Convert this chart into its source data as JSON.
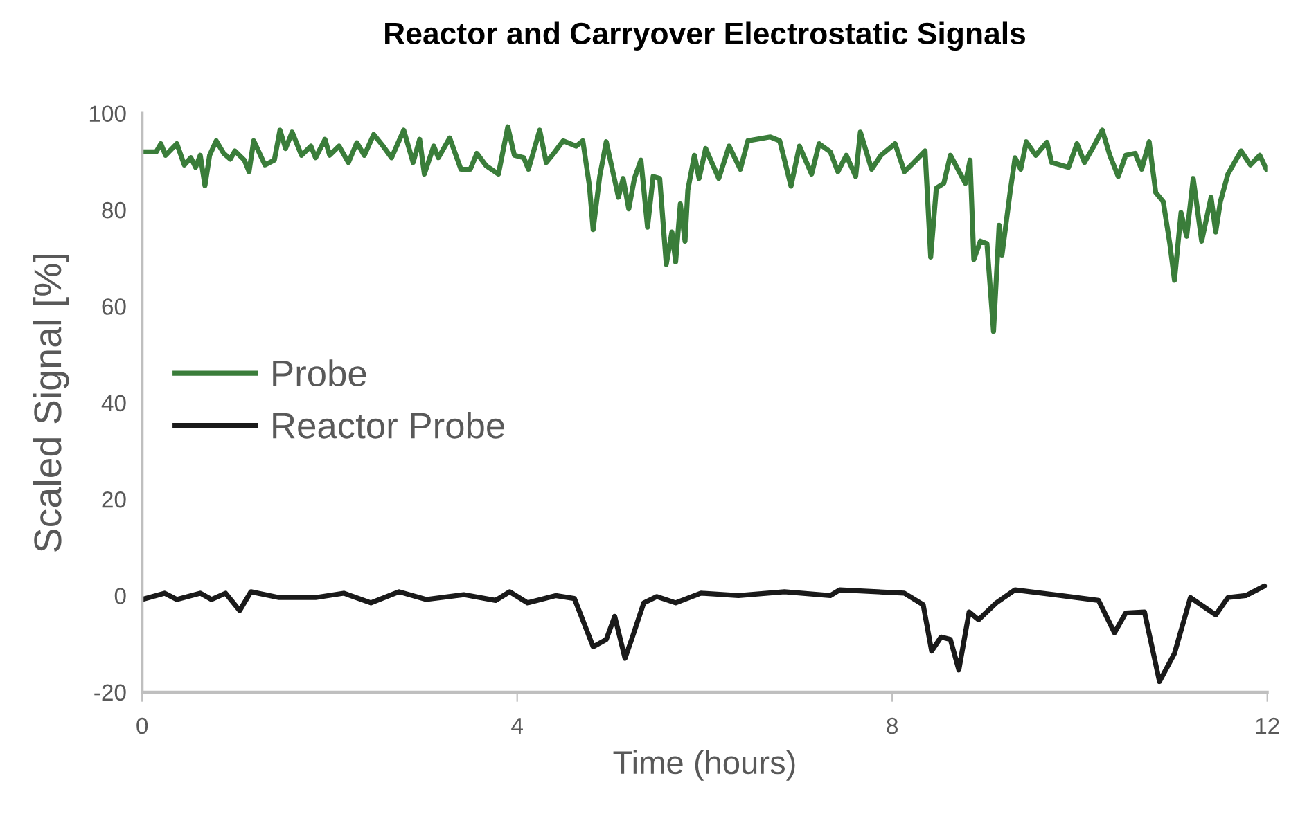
{
  "chart_data": {
    "type": "line",
    "title": "Reactor and Carryover Electrostatic Signals",
    "xlabel": "Time (hours)",
    "ylabel": "Scaled Signal [%]",
    "xlim": [
      0,
      12
    ],
    "xticks": [
      0,
      4,
      8,
      12
    ],
    "ylim": [
      -20,
      100
    ],
    "yticks": [
      -20,
      0,
      20,
      40,
      60,
      80,
      100
    ],
    "grid": false,
    "legend": "left",
    "marker": "none",
    "line_style": "solid",
    "series": [
      {
        "name": "Probe",
        "color": "#3a7d3a",
        "x": [
          0,
          0.15,
          0.2,
          0.25,
          0.37,
          0.45,
          0.52,
          0.57,
          0.62,
          0.67,
          0.72,
          0.79,
          0.87,
          0.94,
          0.99,
          1.09,
          1.14,
          1.19,
          1.31,
          1.41,
          1.47,
          1.53,
          1.6,
          1.7,
          1.8,
          1.85,
          1.95,
          2.0,
          2.1,
          2.2,
          2.29,
          2.37,
          2.47,
          2.57,
          2.66,
          2.79,
          2.89,
          2.96,
          3.01,
          3.11,
          3.16,
          3.28,
          3.4,
          3.5,
          3.57,
          3.67,
          3.8,
          3.9,
          3.97,
          4.07,
          4.12,
          4.24,
          4.31,
          4.39,
          4.49,
          4.63,
          4.7,
          4.77,
          4.81,
          4.88,
          4.95,
          5.08,
          5.13,
          5.19,
          5.25,
          5.32,
          5.39,
          5.45,
          5.52,
          5.59,
          5.65,
          5.69,
          5.74,
          5.79,
          5.82,
          5.89,
          5.94,
          6.01,
          6.15,
          6.26,
          6.38,
          6.46,
          6.7,
          6.8,
          6.92,
          7.01,
          7.14,
          7.22,
          7.34,
          7.42,
          7.51,
          7.61,
          7.66,
          7.78,
          7.88,
          8.03,
          8.13,
          8.23,
          8.35,
          8.41,
          8.47,
          8.55,
          8.62,
          8.78,
          8.83,
          8.87,
          8.94,
          9.01,
          9.08,
          9.14,
          9.17,
          9.26,
          9.31,
          9.37,
          9.43,
          9.53,
          9.65,
          9.7,
          9.88,
          9.97,
          10.05,
          10.15,
          10.24,
          10.32,
          10.41,
          10.49,
          10.59,
          10.66,
          10.74,
          10.81,
          10.89,
          10.96,
          11.01,
          11.08,
          11.14,
          11.21,
          11.3,
          11.4,
          11.45,
          11.5,
          11.58,
          11.72,
          11.82,
          11.92,
          11.99
        ],
        "values": [
          92,
          92,
          93.7,
          91.3,
          93.7,
          89.3,
          90.8,
          88.8,
          91.3,
          85,
          91.3,
          94.3,
          91.7,
          90.5,
          92.2,
          90.3,
          87.9,
          94.3,
          89.3,
          90.3,
          96.5,
          92.7,
          96.1,
          91.3,
          93.2,
          90.8,
          94.6,
          91.3,
          93.2,
          89.8,
          93.9,
          91.3,
          95.6,
          93.2,
          90.8,
          96.5,
          89.8,
          94.6,
          87.4,
          93.2,
          90.8,
          94.9,
          88.4,
          88.4,
          91.7,
          89.1,
          87.4,
          97.2,
          91.3,
          90.8,
          88.4,
          96.5,
          89.8,
          91.7,
          94.3,
          93.2,
          94.3,
          85,
          75.9,
          86.9,
          94.1,
          82.6,
          86.5,
          80.2,
          86.5,
          90.3,
          76.4,
          86.9,
          86.5,
          68.7,
          75.4,
          69.2,
          81.2,
          73.5,
          84.1,
          91.3,
          86.5,
          92.7,
          86.5,
          93.2,
          88.4,
          94.3,
          95.1,
          94.3,
          84.9,
          93.2,
          87.4,
          93.7,
          92,
          87.9,
          91.3,
          86.9,
          96.1,
          88.4,
          91.3,
          93.7,
          87.9,
          89.8,
          92.2,
          70.2,
          84.5,
          85.5,
          91.3,
          85.5,
          90.3,
          69.7,
          73.5,
          73,
          54.8,
          76.8,
          70.6,
          84.1,
          90.8,
          88.4,
          94.1,
          91.3,
          94,
          89.8,
          88.8,
          93.7,
          89.8,
          93.2,
          96.5,
          91.3,
          86.9,
          91.3,
          91.7,
          88.4,
          94.1,
          83.6,
          81.7,
          73,
          65.4,
          79.4,
          74.5,
          86.5,
          73.5,
          82.6,
          75.4,
          81.7,
          87.4,
          92.2,
          89.3,
          91.3,
          88.4
        ]
      },
      {
        "name": "Reactor Probe",
        "color": "#1a1a1a",
        "x": [
          0,
          0.24,
          0.37,
          0.62,
          0.74,
          0.89,
          1.04,
          1.16,
          1.46,
          1.85,
          2.15,
          2.44,
          2.74,
          3.03,
          3.43,
          3.77,
          3.92,
          4.11,
          4.41,
          4.61,
          4.81,
          4.95,
          5.04,
          5.15,
          5.22,
          5.35,
          5.49,
          5.69,
          5.96,
          6.36,
          6.85,
          7.34,
          7.44,
          8.13,
          8.33,
          8.42,
          8.52,
          8.62,
          8.71,
          8.82,
          8.92,
          9.11,
          9.31,
          9.8,
          10.2,
          10.37,
          10.49,
          10.69,
          10.85,
          11.01,
          11.18,
          11.45,
          11.58,
          11.77,
          11.97
        ],
        "values": [
          -0.8,
          0.5,
          -0.8,
          0.5,
          -0.8,
          0.5,
          -3.1,
          0.8,
          -0.4,
          -0.4,
          0.5,
          -1.5,
          0.8,
          -0.8,
          0.2,
          -1,
          0.8,
          -1.5,
          0,
          -0.6,
          -10.6,
          -9.1,
          -4.3,
          -13,
          -9.1,
          -1.5,
          -0.2,
          -1.5,
          0.5,
          0,
          0.8,
          0,
          1.2,
          0.5,
          -1.9,
          -11.5,
          -8.6,
          -9.1,
          -15.4,
          -3.4,
          -5,
          -1.5,
          1.2,
          0,
          -1,
          -7.7,
          -3.6,
          -3.4,
          -17.8,
          -12,
          -0.4,
          -4,
          -0.4,
          0,
          2
        ]
      }
    ]
  }
}
